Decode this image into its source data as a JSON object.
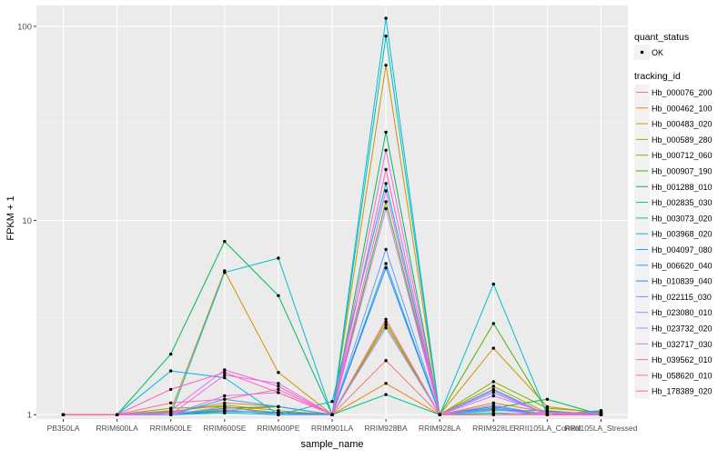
{
  "chart_data": {
    "type": "line",
    "xlabel": "sample_name",
    "ylabel": "FPKM + 1",
    "y_scale": "log10",
    "ylim": [
      0.95,
      128
    ],
    "y_ticks": [
      {
        "value": 1,
        "label": "1"
      },
      {
        "value": 10,
        "label": "10"
      },
      {
        "value": 100,
        "label": "100"
      }
    ],
    "categories": [
      "PB350LA",
      "RRIM600LA",
      "RRIM600LE",
      "RRIM600SE",
      "RRIM600PE",
      "RRIM901LA",
      "RRIM928BA",
      "RRIM928LA",
      "RRIM928LE",
      "RRII105LA_Control",
      "RRII105LA_Stressed"
    ],
    "grid": true,
    "legend_position": "right",
    "shape_legend": {
      "title": "quant_status",
      "items": [
        {
          "label": "OK",
          "shape": "circle"
        }
      ]
    },
    "color_legend_title": "tracking_id",
    "series": [
      {
        "name": "Hb_000076_200",
        "color": "#F8766D",
        "values": [
          1,
          1,
          1.03,
          1.05,
          1.1,
          1,
          1.9,
          1,
          1.07,
          1.0,
          1.0
        ]
      },
      {
        "name": "Hb_000462_100",
        "color": "#E7851E",
        "values": [
          1,
          1,
          1.03,
          1.15,
          1.1,
          1,
          1.45,
          1,
          1.15,
          1.03,
          1.0
        ]
      },
      {
        "name": "Hb_000483_020",
        "color": "#D09400",
        "values": [
          1,
          1,
          1.05,
          5.5,
          1.65,
          1,
          63,
          1,
          2.2,
          1.1,
          1.02
        ]
      },
      {
        "name": "Hb_000589_280",
        "color": "#B2A100",
        "values": [
          1,
          1,
          1.04,
          1.12,
          1.05,
          1,
          3.0,
          1,
          1.4,
          1.02,
          1.0
        ]
      },
      {
        "name": "Hb_000712_060",
        "color": "#89AC00",
        "values": [
          1,
          1,
          1.08,
          1.1,
          1.02,
          1,
          2.9,
          1,
          1.48,
          1.08,
          1.03
        ]
      },
      {
        "name": "Hb_000907_190",
        "color": "#45B500",
        "values": [
          1,
          1,
          1.0,
          1.08,
          1.1,
          1,
          12.5,
          1,
          2.95,
          1.04,
          1.0
        ]
      },
      {
        "name": "Hb_001288_010",
        "color": "#00BC51",
        "values": [
          1,
          1,
          2.05,
          7.8,
          4.1,
          1,
          28.5,
          1,
          1.08,
          1.2,
          1.0
        ]
      },
      {
        "name": "Hb_002835_030",
        "color": "#00C087",
        "values": [
          1,
          1,
          1.02,
          1.04,
          1.02,
          1,
          1.27,
          1,
          1.02,
          1.0,
          1.0
        ]
      },
      {
        "name": "Hb_003073_020",
        "color": "#00C0B2",
        "values": [
          1,
          1,
          1.0,
          1.02,
          1.0,
          1,
          89,
          1,
          1.05,
          1.05,
          1.0
        ]
      },
      {
        "name": "Hb_003968_020",
        "color": "#00BCD6",
        "values": [
          1,
          1,
          1.0,
          5.4,
          6.4,
          1,
          110,
          1,
          4.7,
          1.0,
          1.04
        ]
      },
      {
        "name": "Hb_004097_080",
        "color": "#00B3F2",
        "values": [
          1,
          1,
          1.68,
          1.55,
          1.0,
          1.17,
          15.5,
          1,
          1.35,
          1.0,
          1.0
        ]
      },
      {
        "name": "Hb_006620_040",
        "color": "#29A3FF",
        "values": [
          1,
          1,
          1.0,
          1.2,
          1.1,
          1,
          6.0,
          1,
          1.08,
          1.0,
          1.05
        ]
      },
      {
        "name": "Hb_010839_040",
        "color": "#1F8FE6",
        "values": [
          1,
          1,
          1.0,
          1.04,
          1.03,
          1,
          5.7,
          1,
          1.1,
          1.0,
          1.0
        ]
      },
      {
        "name": "Hb_022115_030",
        "color": "#619CFF",
        "values": [
          1,
          1,
          1.02,
          1.06,
          1.0,
          1,
          7.1,
          1,
          1.3,
          1.0,
          1.02
        ]
      },
      {
        "name": "Hb_023080_010",
        "color": "#9590FF",
        "values": [
          1,
          1,
          1.0,
          1.1,
          1.0,
          1,
          2.8,
          1,
          1.06,
          1.0,
          1.0
        ]
      },
      {
        "name": "Hb_023732_020",
        "color": "#C77CFF",
        "values": [
          1,
          1,
          1.0,
          1.25,
          1.3,
          1,
          11.5,
          1,
          1.12,
          1.0,
          1.0
        ]
      },
      {
        "name": "Hb_032717_030",
        "color": "#E76BF3",
        "values": [
          1,
          1,
          1.0,
          1.6,
          1.45,
          1,
          23,
          1,
          1.25,
          1.02,
          1.0
        ]
      },
      {
        "name": "Hb_039562_010",
        "color": "#F564E3",
        "values": [
          1,
          1,
          1.05,
          1.7,
          1.4,
          1,
          14.2,
          1,
          1.33,
          1.0,
          1.0
        ]
      },
      {
        "name": "Hb_058620_010",
        "color": "#FF62BC",
        "values": [
          1,
          1,
          1.35,
          1.65,
          1.3,
          1,
          18.3,
          1,
          1.0,
          1.0,
          1.0
        ]
      },
      {
        "name": "Hb_178389_020",
        "color": "#FF6C91",
        "values": [
          1,
          1,
          1.15,
          1.2,
          1.35,
          1,
          3.1,
          1,
          1.0,
          1.03,
          1.02
        ]
      }
    ]
  }
}
